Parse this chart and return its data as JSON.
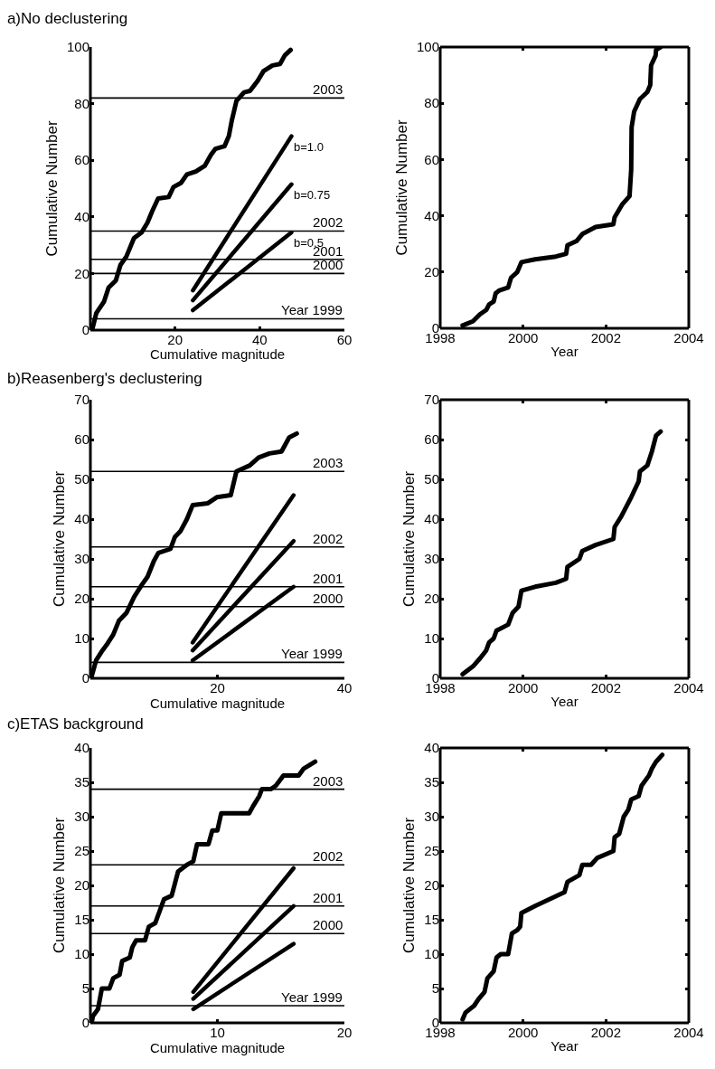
{
  "chart_data": [
    {
      "type": "line",
      "title": "a)No declustering",
      "xlabel": "Cumulative magnitude",
      "ylabel": "Cumulative Number",
      "xlim": [
        0,
        60
      ],
      "ylim": [
        0,
        100
      ],
      "xticks": [
        20,
        40,
        60
      ],
      "yticks": [
        0,
        20,
        40,
        60,
        80,
        100
      ],
      "grid": false,
      "legend": false,
      "marker": "none",
      "line_style": "solid",
      "series": [
        {
          "color": "#000000",
          "x": [
            0.4,
            1.4,
            3.2,
            4.3,
            6,
            7.1,
            8.5,
            10.3,
            12.1,
            13.5,
            14.6,
            16,
            18.5,
            19.6,
            21.4,
            22.8,
            24.9,
            27,
            28.5,
            29.5,
            31.7,
            32.7,
            33.4,
            34.5,
            36.3,
            37.7,
            39.5,
            40.9,
            43,
            44.8,
            45.9,
            47.3
          ],
          "values": [
            0,
            6,
            10,
            15,
            17.5,
            23,
            26,
            32.5,
            34.5,
            38,
            42,
            46.5,
            47,
            50.5,
            52,
            55,
            56,
            58,
            62,
            64,
            65,
            68.5,
            74,
            81,
            84,
            84.5,
            88,
            91.5,
            93.5,
            94,
            97,
            99
          ]
        },
        {
          "name": "b=1.0",
          "color": "#000000",
          "x": [
            24.2,
            47.5
          ],
          "values": [
            14,
            68.5
          ]
        },
        {
          "name": "b=0.75",
          "color": "#000000",
          "x": [
            24.2,
            47.5
          ],
          "values": [
            10.5,
            51.5
          ]
        },
        {
          "name": "b=0.5",
          "color": "#000000",
          "x": [
            24.2,
            47.5
          ],
          "values": [
            7,
            34.5
          ]
        }
      ],
      "ref_lines": [
        {
          "axis": "y",
          "value": 82,
          "color": "#000000"
        },
        {
          "axis": "y",
          "value": 35,
          "color": "#000000"
        },
        {
          "axis": "y",
          "value": 25,
          "color": "#000000"
        },
        {
          "axis": "y",
          "value": 20,
          "color": "#000000"
        },
        {
          "axis": "y",
          "value": 4,
          "color": "#000000"
        }
      ],
      "annotations": [
        {
          "text": "2003",
          "x": 60,
          "y": 82
        },
        {
          "text": "2002",
          "x": 60,
          "y": 35
        },
        {
          "text": "2001",
          "x": 60,
          "y": 25
        },
        {
          "text": "2000",
          "x": 60,
          "y": 20
        },
        {
          "text": "Year 1999",
          "x": 60,
          "y": 4
        }
      ]
    },
    {
      "type": "line",
      "xlabel": "Year",
      "ylabel": "Cumulative Number",
      "xlim": [
        1998,
        2004
      ],
      "ylim": [
        0,
        100
      ],
      "xticks": [
        1998,
        2000,
        2002,
        2004
      ],
      "yticks": [
        0,
        20,
        40,
        60,
        80,
        100
      ],
      "grid": false,
      "legend": false,
      "marker": "none",
      "line_style": "solid",
      "series": [
        {
          "color": "#000000",
          "x": [
            1998.54,
            1998.79,
            1998.96,
            1999.11,
            1999.18,
            1999.29,
            1999.34,
            1999.43,
            1999.64,
            1999.71,
            1999.86,
            1999.96,
            2000.29,
            2000.79,
            2001.04,
            2001.07,
            2001.29,
            2001.43,
            2001.75,
            2002.18,
            2002.21,
            2002.39,
            2002.57,
            2002.61,
            2002.62,
            2002.68,
            2002.82,
            2003,
            2003.07,
            2003.09,
            2003.2,
            2003.21,
            2003.32
          ],
          "values": [
            1,
            2.5,
            5,
            6.5,
            8.5,
            9.5,
            12.5,
            13.5,
            14.5,
            18,
            20,
            23.5,
            24.5,
            25.5,
            26.5,
            29.5,
            31,
            33.5,
            36,
            37,
            39.5,
            44,
            47,
            56.5,
            71.5,
            77,
            81.5,
            84,
            86.5,
            93.5,
            97,
            99,
            100
          ]
        }
      ]
    },
    {
      "type": "line",
      "title": "b)Reasenberg's declustering",
      "xlabel": "Cumulative magnitude",
      "ylabel": "Cumulative Number",
      "xlim": [
        0,
        40
      ],
      "ylim": [
        0,
        70
      ],
      "xticks": [
        20,
        40
      ],
      "yticks": [
        0,
        10,
        20,
        30,
        40,
        50,
        60,
        70
      ],
      "grid": false,
      "legend": false,
      "marker": "none",
      "line_style": "solid",
      "series": [
        {
          "color": "#000000",
          "x": [
            0.2,
            0.9,
            1.9,
            2.6,
            3.6,
            4.5,
            5.7,
            6.9,
            8.1,
            9,
            10,
            10.7,
            12.6,
            13.3,
            14.2,
            15.2,
            16.1,
            18.5,
            19.9,
            22.1,
            23,
            25.1,
            26.5,
            28.2,
            30.1,
            31.3,
            32.5
          ],
          "values": [
            0.5,
            4.5,
            7,
            8.5,
            11,
            14.5,
            16.5,
            20.5,
            23.5,
            25.5,
            29.5,
            31.5,
            32.5,
            35.5,
            37,
            40,
            43.5,
            44,
            45.5,
            46,
            52,
            53.5,
            55.5,
            56.5,
            57,
            60.5,
            61.5
          ]
        },
        {
          "color": "#000000",
          "x": [
            16.1,
            32
          ],
          "values": [
            9,
            46
          ]
        },
        {
          "color": "#000000",
          "x": [
            16.1,
            32
          ],
          "values": [
            7,
            34.5
          ]
        },
        {
          "color": "#000000",
          "x": [
            16.1,
            32
          ],
          "values": [
            4.5,
            23
          ]
        }
      ],
      "ref_lines": [
        {
          "axis": "y",
          "value": 52,
          "color": "#000000"
        },
        {
          "axis": "y",
          "value": 33,
          "color": "#000000"
        },
        {
          "axis": "y",
          "value": 23,
          "color": "#000000"
        },
        {
          "axis": "y",
          "value": 18,
          "color": "#000000"
        },
        {
          "axis": "y",
          "value": 4,
          "color": "#000000"
        }
      ],
      "annotations": [
        {
          "text": "2003",
          "x": 40,
          "y": 52
        },
        {
          "text": "2002",
          "x": 40,
          "y": 33
        },
        {
          "text": "2001",
          "x": 40,
          "y": 23
        },
        {
          "text": "2000",
          "x": 40,
          "y": 18
        },
        {
          "text": "Year 1999",
          "x": 40,
          "y": 4
        }
      ]
    },
    {
      "type": "line",
      "xlabel": "Year",
      "ylabel": "Cumulative Number",
      "xlim": [
        1998,
        2004
      ],
      "ylim": [
        0,
        70
      ],
      "xticks": [
        1998,
        2000,
        2002,
        2004
      ],
      "yticks": [
        0,
        10,
        20,
        30,
        40,
        50,
        60,
        70
      ],
      "grid": false,
      "legend": false,
      "marker": "none",
      "line_style": "solid",
      "series": [
        {
          "color": "#000000",
          "x": [
            1998.54,
            1998.79,
            1998.96,
            1999.11,
            1999.18,
            1999.29,
            1999.36,
            1999.64,
            1999.75,
            1999.89,
            1999.96,
            2000.29,
            2000.79,
            2001.04,
            2001.07,
            2001.36,
            2001.43,
            2001.75,
            2002.18,
            2002.21,
            2002.36,
            2002.61,
            2002.79,
            2002.82,
            2003,
            2003.11,
            2003.21,
            2003.32
          ],
          "values": [
            1,
            3,
            5,
            7,
            9,
            10,
            12,
            13.5,
            16.5,
            18,
            22,
            23,
            24,
            25,
            28,
            30,
            32,
            33.5,
            35,
            38,
            40.5,
            45.5,
            49.5,
            52,
            53.5,
            57,
            61,
            62
          ]
        }
      ]
    },
    {
      "type": "line",
      "title": "c)ETAS background",
      "xlabel": "Cumulative magnitude",
      "ylabel": "Cumulative Number",
      "xlim": [
        0,
        20
      ],
      "ylim": [
        0,
        40
      ],
      "xticks": [
        10,
        20
      ],
      "yticks": [
        0,
        5,
        10,
        15,
        20,
        25,
        30,
        35,
        40
      ],
      "grid": false,
      "legend": false,
      "marker": "none",
      "line_style": "solid",
      "series": [
        {
          "color": "#000000",
          "x": [
            0.1,
            0.2,
            0.6,
            0.9,
            1.5,
            1.8,
            2.3,
            2.5,
            3.1,
            3.3,
            3.6,
            4.3,
            4.6,
            5.1,
            5.5,
            5.8,
            6.4,
            6.9,
            7.6,
            8.1,
            8.4,
            9.3,
            9.6,
            10,
            10.3,
            12.5,
            12.8,
            13.3,
            13.5,
            14.2,
            14.6,
            15.2,
            16.4,
            16.8,
            17.7
          ],
          "values": [
            0,
            1,
            2,
            5,
            5,
            6.5,
            7,
            9,
            9.5,
            11,
            12,
            12,
            14,
            14.5,
            16.5,
            18,
            18.5,
            22,
            23,
            23.5,
            26,
            26,
            28,
            28,
            30.5,
            30.5,
            31.5,
            33,
            34,
            34,
            34.5,
            36,
            36,
            37,
            38
          ]
        },
        {
          "color": "#000000",
          "x": [
            8.1,
            16
          ],
          "values": [
            4.5,
            22.5
          ]
        },
        {
          "color": "#000000",
          "x": [
            8.1,
            16
          ],
          "values": [
            3.5,
            17
          ]
        },
        {
          "color": "#000000",
          "x": [
            8.1,
            16
          ],
          "values": [
            2,
            11.5
          ]
        }
      ],
      "ref_lines": [
        {
          "axis": "y",
          "value": 34,
          "color": "#000000"
        },
        {
          "axis": "y",
          "value": 23,
          "color": "#000000"
        },
        {
          "axis": "y",
          "value": 17,
          "color": "#000000"
        },
        {
          "axis": "y",
          "value": 13,
          "color": "#000000"
        },
        {
          "axis": "y",
          "value": 2.5,
          "color": "#000000"
        }
      ],
      "annotations": [
        {
          "text": "2003",
          "x": 20,
          "y": 34
        },
        {
          "text": "2002",
          "x": 20,
          "y": 23
        },
        {
          "text": "2001",
          "x": 20,
          "y": 17
        },
        {
          "text": "2000",
          "x": 20,
          "y": 13
        },
        {
          "text": "Year 1999",
          "x": 20,
          "y": 2.5
        }
      ]
    },
    {
      "type": "line",
      "xlabel": "Year",
      "ylabel": "Cumulative Number",
      "xlim": [
        1998,
        2004
      ],
      "ylim": [
        0,
        40
      ],
      "xticks": [
        1998,
        2000,
        2002,
        2004
      ],
      "yticks": [
        0,
        5,
        10,
        15,
        20,
        25,
        30,
        35,
        40
      ],
      "grid": false,
      "legend": false,
      "marker": "none",
      "line_style": "solid",
      "series": [
        {
          "color": "#000000",
          "x": [
            1998.54,
            1998.61,
            1998.82,
            1998.93,
            1999.07,
            1999.14,
            1999.29,
            1999.36,
            1999.46,
            1999.64,
            1999.73,
            1999.86,
            1999.93,
            1999.96,
            2000.29,
            2001,
            2001.07,
            2001.36,
            2001.43,
            2001.64,
            2001.79,
            2002.18,
            2002.21,
            2002.32,
            2002.43,
            2002.54,
            2002.61,
            2002.79,
            2002.86,
            2003.04,
            2003.11,
            2003.21,
            2003.36
          ],
          "values": [
            0.5,
            1.5,
            2.5,
            3.5,
            4.5,
            6.5,
            7.5,
            9.5,
            10,
            10,
            13,
            13.5,
            14,
            16,
            17,
            19,
            20.5,
            21.5,
            23,
            23,
            24,
            25,
            27,
            27.5,
            30,
            31,
            32.5,
            33,
            34.5,
            36,
            37,
            38,
            39
          ]
        }
      ]
    }
  ]
}
